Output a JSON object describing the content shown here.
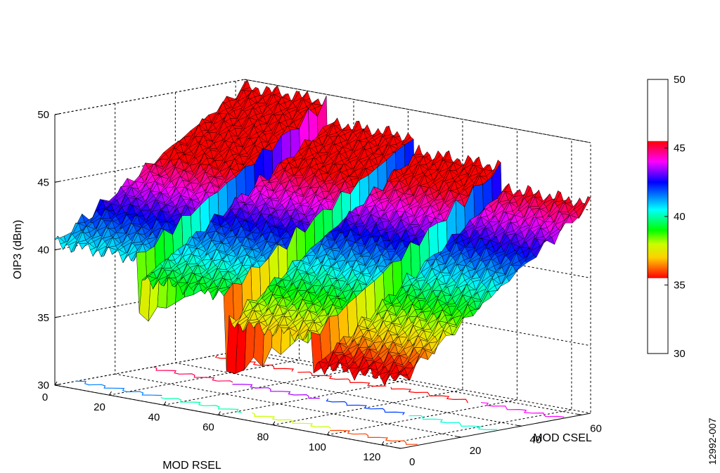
{
  "figure_id": "12992-007",
  "chart_data": {
    "type": "surface3d",
    "title": "",
    "xlabel": "MOD RSEL",
    "ylabel": "MOD CSEL",
    "zlabel": "OIP3 (dBm)",
    "x_ticks": [
      "0",
      "20",
      "40",
      "60",
      "80",
      "100",
      "120"
    ],
    "y_ticks": [
      "0",
      "20",
      "40",
      "60"
    ],
    "z_ticks": [
      "30",
      "35",
      "40",
      "45",
      "50"
    ],
    "xlim": [
      0,
      127
    ],
    "ylim": [
      0,
      63
    ],
    "zlim": [
      30,
      50
    ],
    "grid": true,
    "contours_on_floor": true,
    "x_groups": [
      {
        "x_range": [
          0,
          31
        ],
        "oip3_at_csel_0": 40.5,
        "oip3_at_csel_63": 49.5,
        "edge_drop_to": 36.0
      },
      {
        "x_range": [
          32,
          63
        ],
        "oip3_at_csel_0": 39.0,
        "oip3_at_csel_63": 48.0,
        "edge_drop_to": 33.0
      },
      {
        "x_range": [
          64,
          95
        ],
        "oip3_at_csel_0": 37.0,
        "oip3_at_csel_63": 47.0,
        "edge_drop_to": 34.5
      },
      {
        "x_range": [
          96,
          127
        ],
        "oip3_at_csel_0": 35.0,
        "oip3_at_csel_63": 45.5,
        "edge_drop_to": 33.0
      }
    ],
    "colorbar": {
      "ticks": [
        "30",
        "35",
        "40",
        "45",
        "50"
      ],
      "range": [
        30,
        50
      ],
      "colored_range": [
        35.5,
        45.5
      ],
      "stops": [
        {
          "value": 35.5,
          "color": "#ff0000"
        },
        {
          "value": 37.0,
          "color": "#ffd000"
        },
        {
          "value": 38.0,
          "color": "#c8ff00"
        },
        {
          "value": 39.0,
          "color": "#00ff00"
        },
        {
          "value": 40.5,
          "color": "#00ffff"
        },
        {
          "value": 42.5,
          "color": "#0000ff"
        },
        {
          "value": 44.0,
          "color": "#ff00ff"
        },
        {
          "value": 45.5,
          "color": "#ff0000"
        }
      ]
    }
  }
}
